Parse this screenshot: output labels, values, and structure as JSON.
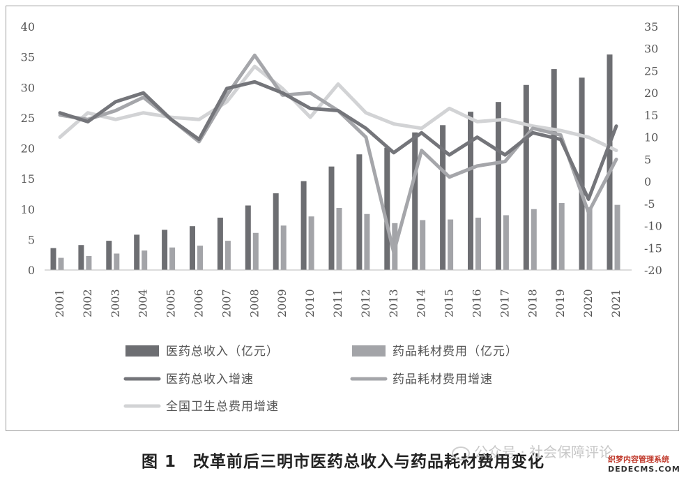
{
  "chart_data": {
    "type": "bar+line",
    "title": "",
    "categories": [
      "2001",
      "2002",
      "2003",
      "2004",
      "2005",
      "2006",
      "2007",
      "2008",
      "2009",
      "2010",
      "2011",
      "2012",
      "2013",
      "2014",
      "2015",
      "2016",
      "2017",
      "2018",
      "2019",
      "2020",
      "2021"
    ],
    "left_axis": {
      "range": [
        0,
        40
      ],
      "ticks": [
        "0",
        "5",
        "10",
        "15",
        "20",
        "25",
        "30",
        "35",
        "40"
      ]
    },
    "right_axis": {
      "range": [
        -20,
        35
      ],
      "ticks": [
        "-20",
        "-15",
        "-10",
        "-5",
        "0",
        "5",
        "10",
        "15",
        "20",
        "25",
        "30",
        "35"
      ]
    },
    "bar_series": [
      {
        "name": "医药总收入（亿元）",
        "color": "#6d6e72",
        "values": [
          3.6,
          4.1,
          4.8,
          5.8,
          6.6,
          7.2,
          8.6,
          10.6,
          12.6,
          14.6,
          17.0,
          19.0,
          20.1,
          22.6,
          23.8,
          26.0,
          27.6,
          30.4,
          33.0,
          31.6,
          35.4
        ]
      },
      {
        "name": "药品耗材费用（亿元）",
        "color": "#a3a4a8",
        "values": [
          2.0,
          2.3,
          2.7,
          3.2,
          3.7,
          4.0,
          4.8,
          6.1,
          7.3,
          8.8,
          10.2,
          9.2,
          7.7,
          8.2,
          8.3,
          8.6,
          9.0,
          10.0,
          11.0,
          10.3,
          10.7
        ]
      }
    ],
    "line_series": [
      {
        "name": "医药总收入增速",
        "color": "#74757a",
        "values": [
          15.5,
          13.5,
          18.0,
          20.0,
          14.0,
          9.5,
          21.0,
          22.5,
          20.0,
          16.5,
          16.0,
          12.0,
          6.5,
          11.0,
          6.0,
          10.0,
          6.0,
          11.0,
          9.5,
          -4.0,
          12.5
        ]
      },
      {
        "name": "药品耗材费用增速",
        "color": "#a5a6aa",
        "values": [
          15.0,
          14.0,
          16.0,
          19.0,
          14.0,
          9.0,
          19.5,
          28.5,
          19.5,
          20.0,
          16.0,
          10.0,
          -16.0,
          7.0,
          1.0,
          3.5,
          4.5,
          12.0,
          10.5,
          -7.0,
          5.0
        ]
      },
      {
        "name": "全国卫生总费用增速",
        "color": "#d2d3d5",
        "values": [
          10.0,
          15.5,
          14.0,
          15.5,
          14.5,
          14.0,
          18.0,
          26.0,
          21.0,
          14.5,
          22.0,
          15.5,
          13.0,
          12.0,
          16.5,
          13.5,
          14.0,
          12.5,
          11.5,
          10.0,
          7.0
        ]
      }
    ],
    "legend_position": "bottom",
    "grid": false
  },
  "caption": "图 1　改革前后三明市医药总收入与药品耗材费用变化",
  "watermark": "公众号 · 社会保障评论",
  "site_badge": {
    "line1": "织梦内容管理系统",
    "line2": "DEDECMS.COM"
  }
}
